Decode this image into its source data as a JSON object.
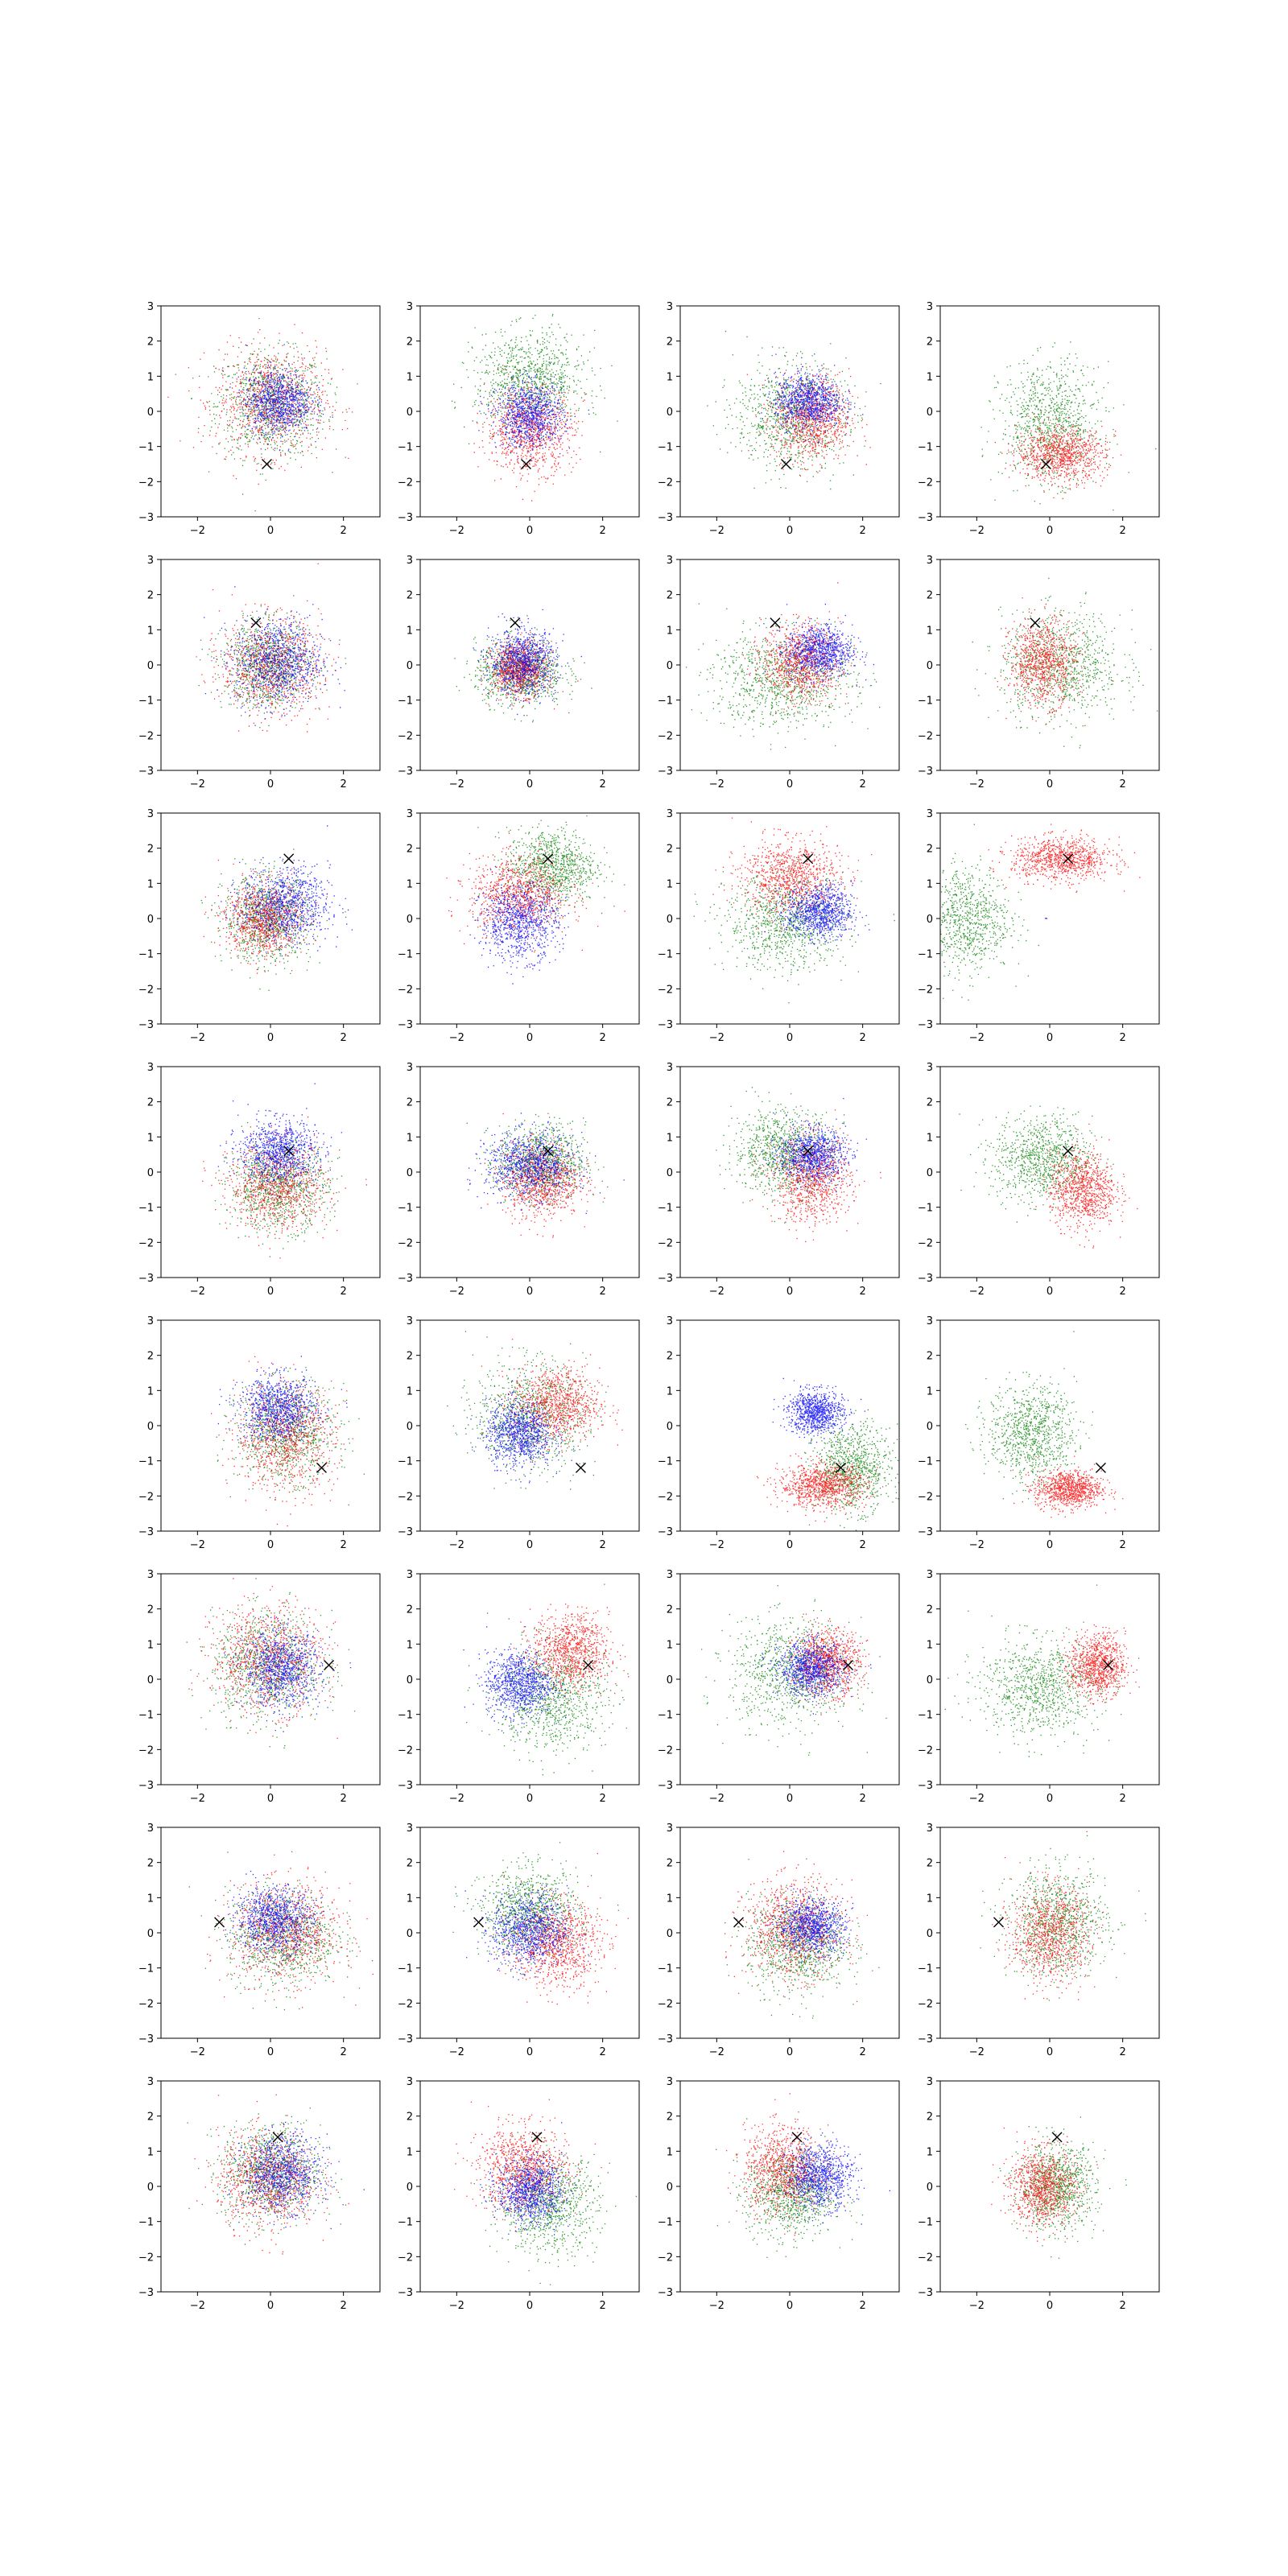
{
  "figure": {
    "background": "#ffffff",
    "grid": "8 rows x 4 columns of scatter subplots",
    "grid_lines": false,
    "legend": "none"
  },
  "chart_data": {
    "type": "scatter",
    "xlim": [
      -3,
      3
    ],
    "ylim": [
      -3,
      3
    ],
    "x_ticks": [
      "−2",
      "0",
      "2"
    ],
    "y_ticks": [
      "−3",
      "−2",
      "−1",
      "0",
      "1",
      "2",
      "3"
    ],
    "colors": {
      "red": "#ff0000",
      "green": "#008000",
      "blue": "#0000ff",
      "marker": "#000000"
    },
    "marker_symbol": "×",
    "rows": [
      {
        "marker": [
          -0.1,
          -1.5
        ],
        "panels": [
          {
            "blue": [
              0.2,
              0.3,
              0.6,
              0.6,
              1.0
            ],
            "red": [
              0,
              0.3,
              1.0,
              1.0,
              1.0
            ],
            "green": [
              0,
              0.2,
              1.0,
              1.0,
              1.0
            ]
          },
          {
            "blue": [
              0,
              -0.1,
              0.6,
              0.6,
              1.0
            ],
            "red": [
              0,
              -0.5,
              0.8,
              0.8,
              1.0
            ],
            "green": [
              0,
              0.9,
              1.0,
              0.9,
              1.0
            ]
          },
          {
            "blue": [
              0.5,
              0.3,
              0.6,
              0.5,
              1.0
            ],
            "red": [
              0.6,
              -0.2,
              0.7,
              0.8,
              1.0
            ],
            "green": [
              0,
              -0.1,
              1.0,
              1.0,
              1.0
            ]
          },
          {
            "blue": [
              0,
              0,
              0,
              0,
              0
            ],
            "red": [
              0.3,
              -1.2,
              0.8,
              0.5,
              1.0
            ],
            "green": [
              0,
              -0.3,
              0.9,
              1.1,
              1.0
            ]
          }
        ]
      },
      {
        "marker": [
          -0.4,
          1.2
        ],
        "panels": [
          {
            "blue": [
              0.2,
              0.1,
              0.8,
              0.8,
              1.0
            ],
            "red": [
              0,
              0,
              0.9,
              0.9,
              1.0
            ],
            "green": [
              -0.1,
              0,
              0.8,
              0.8,
              1.0
            ]
          },
          {
            "blue": [
              -0.2,
              0.1,
              0.6,
              0.6,
              1.0
            ],
            "red": [
              -0.3,
              -0.1,
              0.5,
              0.5,
              1.0
            ],
            "green": [
              -0.3,
              -0.2,
              0.8,
              0.6,
              1.0
            ]
          },
          {
            "blue": [
              0.8,
              0.4,
              0.6,
              0.5,
              1.0
            ],
            "red": [
              0.3,
              0.1,
              0.7,
              0.7,
              1.0
            ],
            "green": [
              -0.2,
              -0.4,
              1.3,
              0.9,
              1.0
            ]
          },
          {
            "blue": [
              0,
              0,
              0,
              0,
              0
            ],
            "red": [
              -0.2,
              0.1,
              0.6,
              0.8,
              1.0
            ],
            "green": [
              0.3,
              0,
              1.1,
              1.0,
              1.0
            ]
          }
        ]
      },
      {
        "marker": [
          0.5,
          1.7
        ],
        "panels": [
          {
            "blue": [
              0.4,
              0.4,
              0.8,
              0.7,
              1.0
            ],
            "red": [
              -0.2,
              0,
              0.7,
              0.7,
              1.0
            ],
            "green": [
              -0.1,
              0,
              0.8,
              0.8,
              1.0
            ]
          },
          {
            "blue": [
              -0.3,
              -0.1,
              0.7,
              0.7,
              1.0
            ],
            "red": [
              -0.3,
              0.7,
              0.9,
              0.7,
              1.0
            ],
            "green": [
              0.6,
              1.5,
              0.8,
              0.7,
              1.0
            ]
          },
          {
            "blue": [
              0.8,
              0.2,
              0.6,
              0.5,
              1.0
            ],
            "red": [
              0,
              1.2,
              0.9,
              0.7,
              1.0
            ],
            "green": [
              -0.1,
              -0.1,
              1.1,
              0.9,
              1.0
            ]
          },
          {
            "blue": [
              -0.1,
              0,
              0.02,
              0.02,
              0.003
            ],
            "red": [
              0.3,
              1.7,
              0.9,
              0.4,
              1.0
            ],
            "green": [
              -2.3,
              0,
              0.8,
              1.0,
              0.9
            ]
          }
        ]
      },
      {
        "marker": [
          0.5,
          0.6
        ],
        "panels": [
          {
            "blue": [
              0.2,
              0.6,
              0.7,
              0.6,
              1.0
            ],
            "red": [
              0.2,
              -0.4,
              0.9,
              0.8,
              1.0
            ],
            "green": [
              0.2,
              -0.4,
              0.9,
              0.8,
              1.0
            ]
          },
          {
            "blue": [
              0,
              0.2,
              0.8,
              0.6,
              1.0
            ],
            "red": [
              0.3,
              -0.2,
              0.7,
              0.7,
              1.0
            ],
            "green": [
              0.3,
              0.3,
              0.8,
              0.7,
              1.0
            ]
          },
          {
            "blue": [
              0.6,
              0.5,
              0.6,
              0.5,
              1.0
            ],
            "red": [
              0.6,
              -0.2,
              0.7,
              0.8,
              1.0
            ],
            "green": [
              -0.2,
              0.6,
              0.9,
              0.8,
              1.0
            ]
          },
          {
            "blue": [
              0,
              0,
              0,
              0,
              0
            ],
            "red": [
              0.9,
              -0.5,
              0.6,
              0.7,
              1.0
            ],
            "green": [
              -0.2,
              0.4,
              0.9,
              0.8,
              1.0
            ]
          }
        ]
      },
      {
        "marker": [
          1.4,
          -1.2
        ],
        "panels": [
          {
            "blue": [
              0.2,
              0.5,
              0.7,
              0.6,
              1.0
            ],
            "red": [
              0.4,
              -0.3,
              0.9,
              1.0,
              1.0
            ],
            "green": [
              0.4,
              -0.2,
              0.9,
              0.9,
              1.0
            ]
          },
          {
            "blue": [
              -0.3,
              -0.2,
              0.6,
              0.6,
              1.0
            ],
            "red": [
              0.7,
              0.6,
              0.8,
              0.7,
              1.0
            ],
            "green": [
              0,
              0.3,
              1.0,
              1.0,
              1.0
            ]
          },
          {
            "blue": [
              0.7,
              0.4,
              0.5,
              0.4,
              1.0
            ],
            "red": [
              0.9,
              -1.7,
              0.8,
              0.4,
              1.0
            ],
            "green": [
              1.7,
              -1.2,
              0.7,
              0.8,
              1.0
            ]
          },
          {
            "blue": [
              0,
              0,
              0,
              0,
              0
            ],
            "red": [
              0.5,
              -1.8,
              0.6,
              0.35,
              1.0
            ],
            "green": [
              -0.5,
              -0.2,
              0.8,
              0.9,
              1.0
            ]
          }
        ]
      },
      {
        "marker": [
          1.6,
          0.4
        ],
        "panels": [
          {
            "blue": [
              0.3,
              0.3,
              0.7,
              0.7,
              1.0
            ],
            "red": [
              -0.1,
              0.6,
              1.0,
              1.0,
              1.0
            ],
            "green": [
              -0.1,
              0.4,
              1.0,
              1.0,
              1.0
            ]
          },
          {
            "blue": [
              -0.3,
              -0.1,
              0.6,
              0.6,
              1.0
            ],
            "red": [
              1.1,
              0.8,
              0.7,
              0.7,
              1.0
            ],
            "green": [
              0.6,
              -0.5,
              1.0,
              1.0,
              1.0
            ]
          },
          {
            "blue": [
              0.6,
              0.3,
              0.6,
              0.5,
              1.0
            ],
            "red": [
              1.0,
              0.5,
              0.6,
              0.6,
              1.0
            ],
            "green": [
              0,
              0.2,
              1.1,
              1.0,
              1.0
            ]
          },
          {
            "blue": [
              0,
              0,
              0,
              0,
              0
            ],
            "red": [
              1.3,
              0.4,
              0.5,
              0.6,
              1.0
            ],
            "green": [
              -0.3,
              -0.2,
              1.1,
              0.9,
              1.0
            ]
          }
        ]
      },
      {
        "marker": [
          -1.4,
          0.3
        ],
        "panels": [
          {
            "blue": [
              0.1,
              0.4,
              0.7,
              0.6,
              1.0
            ],
            "red": [
              0.4,
              0,
              1.0,
              0.9,
              1.0
            ],
            "green": [
              0.3,
              -0.1,
              1.0,
              0.9,
              1.0
            ]
          },
          {
            "blue": [
              0,
              0.1,
              0.7,
              0.7,
              1.0
            ],
            "red": [
              0.7,
              -0.3,
              0.8,
              0.8,
              1.0
            ],
            "green": [
              0,
              0.6,
              0.9,
              0.8,
              1.0
            ]
          },
          {
            "blue": [
              0.6,
              0.2,
              0.6,
              0.5,
              1.0
            ],
            "red": [
              0.1,
              0.1,
              0.9,
              0.9,
              1.0
            ],
            "green": [
              0.2,
              -0.3,
              0.9,
              0.9,
              1.0
            ]
          },
          {
            "blue": [
              0,
              0,
              0,
              0,
              0
            ],
            "red": [
              0,
              0,
              0.7,
              0.9,
              1.0
            ],
            "green": [
              0.2,
              0.3,
              0.9,
              1.0,
              1.0
            ]
          }
        ]
      },
      {
        "marker": [
          0.2,
          1.4
        ],
        "panels": [
          {
            "blue": [
              0.3,
              0.4,
              0.7,
              0.7,
              1.0
            ],
            "red": [
              -0.1,
              0.2,
              0.9,
              0.9,
              1.0
            ],
            "green": [
              0,
              0.4,
              0.9,
              0.9,
              1.0
            ]
          },
          {
            "blue": [
              0,
              -0.1,
              0.6,
              0.6,
              1.0
            ],
            "red": [
              -0.2,
              0.5,
              0.8,
              0.8,
              1.0
            ],
            "green": [
              0.5,
              -0.5,
              0.9,
              0.9,
              1.0
            ]
          },
          {
            "blue": [
              0.8,
              0.3,
              0.6,
              0.6,
              1.0
            ],
            "red": [
              -0.2,
              0.5,
              0.7,
              0.8,
              1.0
            ],
            "green": [
              0,
              -0.2,
              0.8,
              0.8,
              1.0
            ]
          },
          {
            "blue": [
              0,
              0,
              0,
              0,
              0
            ],
            "red": [
              -0.2,
              0,
              0.6,
              0.7,
              1.0
            ],
            "green": [
              0.2,
              0,
              0.7,
              0.8,
              1.0
            ]
          }
        ]
      }
    ]
  }
}
